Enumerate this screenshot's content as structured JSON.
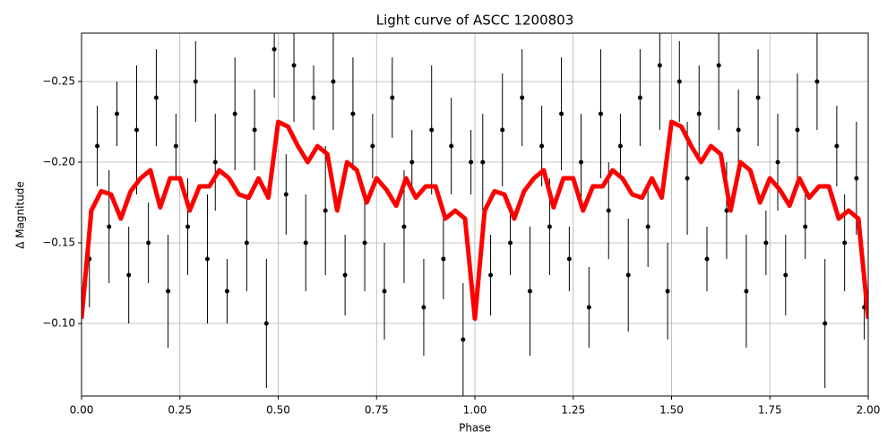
{
  "chart_data": {
    "type": "errorbar",
    "title": "Light curve of ASCC 1200803",
    "x_label": "Phase",
    "y_label": "Δ Magnitude",
    "xlim": [
      0,
      2
    ],
    "ylim": [
      -0.055,
      -0.28
    ],
    "xticks": [
      {
        "value": 0,
        "label": "0.00"
      },
      0.25,
      {
        "value": 0.5,
        "label": "0.50"
      },
      0.75,
      {
        "value": 1,
        "label": "1.00"
      },
      1.25,
      {
        "value": 1.5,
        "label": "1.50"
      },
      1.75,
      {
        "value": 2,
        "label": "2.00"
      }
    ],
    "yticks": [
      {
        "value": -0.25,
        "label": "−0.25"
      },
      {
        "value": -0.2,
        "label": "−0.20"
      },
      {
        "value": -0.15,
        "label": "−0.15"
      },
      {
        "value": -0.1,
        "label": "−0.10"
      }
    ],
    "grid": true,
    "points": {
      "color": "#000000",
      "x": [
        0.02,
        0.04,
        0.07,
        0.09,
        0.12,
        0.14,
        0.17,
        0.19,
        0.22,
        0.24,
        0.27,
        0.29,
        0.32,
        0.34,
        0.37,
        0.39,
        0.42,
        0.44,
        0.47,
        0.49,
        0.52,
        0.54,
        0.57,
        0.59,
        0.62,
        0.64,
        0.67,
        0.69,
        0.72,
        0.74,
        0.77,
        0.79,
        0.82,
        0.84,
        0.87,
        0.89,
        0.92,
        0.94,
        0.97,
        0.99,
        1.02,
        1.04,
        1.07,
        1.09,
        1.12,
        1.14,
        1.17,
        1.19,
        1.22,
        1.24,
        1.27,
        1.29,
        1.32,
        1.34,
        1.37,
        1.39,
        1.42,
        1.44,
        1.47,
        1.49,
        1.52,
        1.54,
        1.57,
        1.59,
        1.62,
        1.64,
        1.67,
        1.69,
        1.72,
        1.74,
        1.77,
        1.79,
        1.82,
        1.84,
        1.87,
        1.89,
        1.92,
        1.94,
        1.97,
        1.99
      ],
      "y": [
        -0.14,
        -0.21,
        -0.16,
        -0.23,
        -0.13,
        -0.22,
        -0.15,
        -0.24,
        -0.12,
        -0.21,
        -0.16,
        -0.25,
        -0.14,
        -0.2,
        -0.12,
        -0.23,
        -0.15,
        -0.22,
        -0.1,
        -0.27,
        -0.18,
        -0.26,
        -0.15,
        -0.24,
        -0.17,
        -0.25,
        -0.13,
        -0.23,
        -0.15,
        -0.21,
        -0.12,
        -0.24,
        -0.16,
        -0.2,
        -0.11,
        -0.22,
        -0.14,
        -0.21,
        -0.09,
        -0.2,
        -0.2,
        -0.13,
        -0.22,
        -0.15,
        -0.24,
        -0.12,
        -0.21,
        -0.16,
        -0.23,
        -0.14,
        -0.2,
        -0.11,
        -0.23,
        -0.17,
        -0.21,
        -0.13,
        -0.24,
        -0.16,
        -0.26,
        -0.12,
        -0.25,
        -0.19,
        -0.23,
        -0.14,
        -0.26,
        -0.17,
        -0.22,
        -0.12,
        -0.24,
        -0.15,
        -0.2,
        -0.13,
        -0.22,
        -0.16,
        -0.25,
        -0.1,
        -0.21,
        -0.15,
        -0.19,
        -0.11
      ],
      "yerr": [
        0.03,
        0.025,
        0.035,
        0.02,
        0.03,
        0.04,
        0.025,
        0.03,
        0.035,
        0.02,
        0.03,
        0.025,
        0.04,
        0.03,
        0.02,
        0.035,
        0.03,
        0.025,
        0.04,
        0.03,
        0.025,
        0.035,
        0.03,
        0.02,
        0.04,
        0.03,
        0.025,
        0.035,
        0.03,
        0.02,
        0.03,
        0.025,
        0.035,
        0.02,
        0.03,
        0.04,
        0.025,
        0.03,
        0.035,
        0.02,
        0.03,
        0.025,
        0.035,
        0.02,
        0.03,
        0.04,
        0.025,
        0.03,
        0.035,
        0.02,
        0.03,
        0.025,
        0.04,
        0.03,
        0.02,
        0.035,
        0.03,
        0.025,
        0.04,
        0.03,
        0.025,
        0.035,
        0.03,
        0.02,
        0.04,
        0.03,
        0.025,
        0.035,
        0.03,
        0.02,
        0.03,
        0.025,
        0.035,
        0.02,
        0.03,
        0.04,
        0.025,
        0.03,
        0.035,
        0.02
      ]
    },
    "line": {
      "color": "#ff0000",
      "x": [
        0,
        0.025,
        0.05,
        0.075,
        0.1,
        0.125,
        0.15,
        0.175,
        0.2,
        0.225,
        0.25,
        0.275,
        0.3,
        0.325,
        0.35,
        0.375,
        0.4,
        0.425,
        0.45,
        0.475,
        0.5,
        0.525,
        0.55,
        0.575,
        0.6,
        0.625,
        0.65,
        0.675,
        0.7,
        0.725,
        0.75,
        0.775,
        0.8,
        0.825,
        0.85,
        0.875,
        0.9,
        0.925,
        0.95,
        0.975,
        1,
        1.025,
        1.05,
        1.075,
        1.1,
        1.125,
        1.15,
        1.175,
        1.2,
        1.225,
        1.25,
        1.275,
        1.3,
        1.325,
        1.35,
        1.375,
        1.4,
        1.425,
        1.45,
        1.475,
        1.5,
        1.525,
        1.55,
        1.575,
        1.6,
        1.625,
        1.65,
        1.675,
        1.7,
        1.725,
        1.75,
        1.775,
        1.8,
        1.825,
        1.85,
        1.875,
        1.9,
        1.925,
        1.95,
        1.975,
        2
      ],
      "y": [
        -0.103,
        -0.17,
        -0.182,
        -0.18,
        -0.165,
        -0.182,
        -0.19,
        -0.195,
        -0.172,
        -0.19,
        -0.19,
        -0.17,
        -0.185,
        -0.185,
        -0.195,
        -0.19,
        -0.18,
        -0.178,
        -0.19,
        -0.178,
        -0.225,
        -0.222,
        -0.21,
        -0.2,
        -0.21,
        -0.205,
        -0.17,
        -0.2,
        -0.195,
        -0.175,
        -0.19,
        -0.183,
        -0.173,
        -0.19,
        -0.178,
        -0.185,
        -0.185,
        -0.165,
        -0.17,
        -0.165,
        -0.103,
        -0.17,
        -0.182,
        -0.18,
        -0.165,
        -0.182,
        -0.19,
        -0.195,
        -0.172,
        -0.19,
        -0.19,
        -0.17,
        -0.185,
        -0.185,
        -0.195,
        -0.19,
        -0.18,
        -0.178,
        -0.19,
        -0.178,
        -0.225,
        -0.222,
        -0.21,
        -0.2,
        -0.21,
        -0.205,
        -0.17,
        -0.2,
        -0.195,
        -0.175,
        -0.19,
        -0.183,
        -0.173,
        -0.19,
        -0.178,
        -0.185,
        -0.185,
        -0.165,
        -0.17,
        -0.165,
        -0.103
      ]
    }
  }
}
